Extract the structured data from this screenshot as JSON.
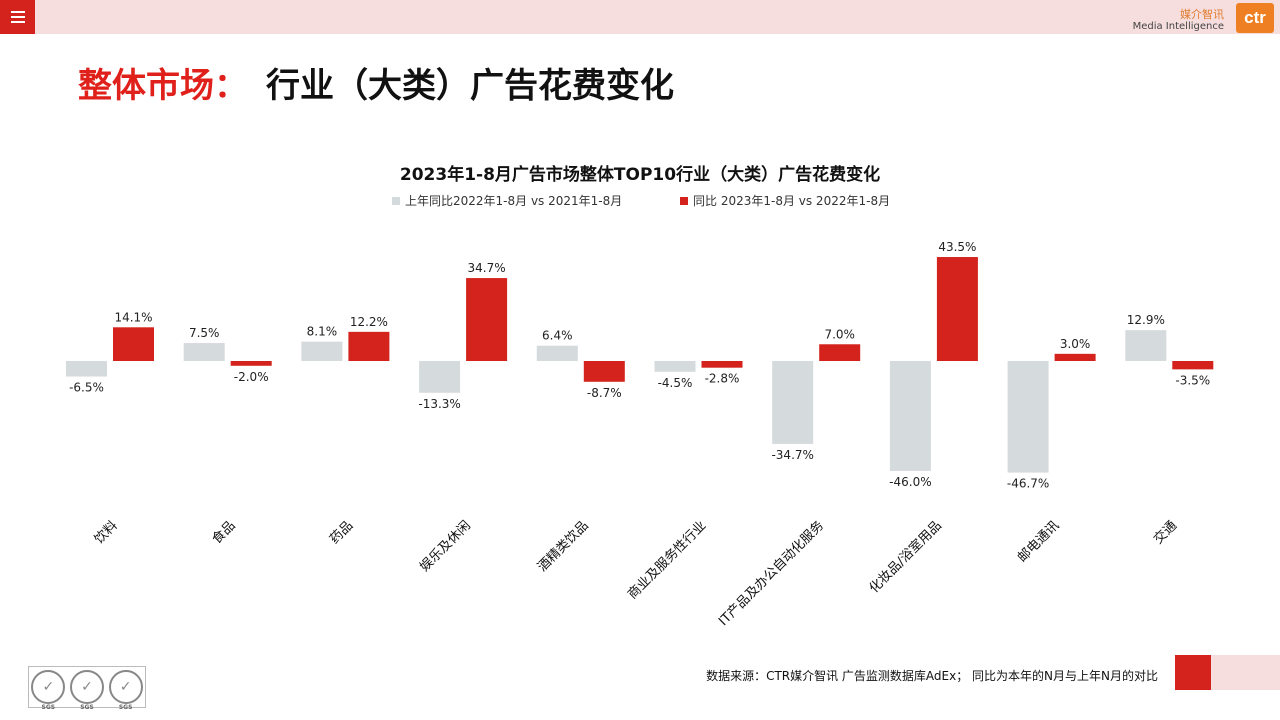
{
  "header": {
    "menu_icon": "hamburger-menu-icon",
    "brand_cn": "媒介智讯",
    "brand_en": "Media Intelligence",
    "logo_text": "ctr"
  },
  "page_title": {
    "red": "整体市场：",
    "black": "行业（大类）广告花费变化"
  },
  "colors": {
    "accent_red": "#d3231c",
    "series_prev": "#d5dadd",
    "series_curr": "#d3231c"
  },
  "chart_data": {
    "type": "bar",
    "title": "2023年1-8月广告市场整体TOP10行业（大类）广告花费变化",
    "legend_position": "top",
    "grid": false,
    "categories": [
      "饮料",
      "食品",
      "药品",
      "娱乐及休闲",
      "酒精类饮品",
      "商业及服务性行业",
      "IT产品及办公自动化服务",
      "化妆品/浴室用品",
      "邮电通讯",
      "交通"
    ],
    "series": [
      {
        "name": "上年同比2022年1-8月 vs 2021年1-8月",
        "color": "#d5dadd",
        "values": [
          -6.5,
          7.5,
          8.1,
          -13.3,
          6.4,
          -4.5,
          -34.7,
          -46.0,
          -46.7,
          12.9
        ],
        "labels": [
          "-6.5%",
          "7.5%",
          "8.1%",
          "-13.3%",
          "6.4%",
          "-4.5%",
          "-34.7%",
          "-46.0%",
          "-46.7%",
          "12.9%"
        ]
      },
      {
        "name": "同比 2023年1-8月 vs 2022年1-8月",
        "color": "#d3231c",
        "values": [
          14.1,
          -2.0,
          12.2,
          34.7,
          -8.7,
          -2.8,
          7.0,
          43.5,
          3.0,
          -3.5
        ],
        "labels": [
          "14.1%",
          "-2.0%",
          "12.2%",
          "34.7%",
          "-8.7%",
          "-2.8%",
          "7.0%",
          "43.5%",
          "3.0%",
          "-3.5%"
        ]
      }
    ]
  },
  "footer": {
    "source": "数据来源：CTR媒介智讯 广告监测数据库AdEx； 同比为本年的N月与上年N月的对比",
    "sgs_label": "SGS",
    "sgs_icon": "certification-seal-icon"
  }
}
